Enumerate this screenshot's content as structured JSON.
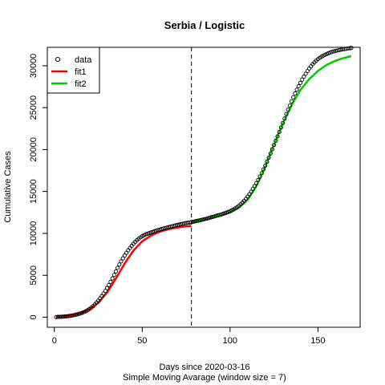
{
  "chart_data": {
    "type": "scatter",
    "title": "Serbia / Logistic",
    "xlabel": "Days since 2020-03-16",
    "xlabel_sub": "Simple Moving Avarage (window size = 7)",
    "ylabel": "Cumulative Cases",
    "xlim": [
      -4,
      174
    ],
    "ylim": [
      -1200,
      32200
    ],
    "x_ticks": [
      0,
      50,
      100,
      150
    ],
    "y_ticks": [
      0,
      5000,
      10000,
      15000,
      20000,
      25000,
      30000
    ],
    "vline_x": 78,
    "legend_position": "top-left",
    "legend": [
      {
        "label": "data",
        "kind": "circle"
      },
      {
        "label": "fit1",
        "kind": "line",
        "color": "#ff0000"
      },
      {
        "label": "fit2",
        "kind": "line",
        "color": "#00cd00"
      }
    ],
    "series": [
      {
        "name": "data",
        "x": [
          1,
          2,
          3,
          4,
          5,
          6,
          7,
          8,
          9,
          10,
          11,
          12,
          13,
          14,
          15,
          16,
          17,
          18,
          19,
          20,
          21,
          22,
          23,
          24,
          25,
          26,
          27,
          28,
          29,
          30,
          31,
          32,
          33,
          34,
          35,
          36,
          37,
          38,
          39,
          40,
          41,
          42,
          43,
          44,
          45,
          46,
          47,
          48,
          49,
          50,
          51,
          52,
          53,
          54,
          55,
          56,
          57,
          58,
          59,
          60,
          61,
          62,
          63,
          64,
          65,
          66,
          67,
          68,
          69,
          70,
          71,
          72,
          73,
          74,
          75,
          76,
          77,
          78,
          79,
          80,
          81,
          82,
          83,
          84,
          85,
          86,
          87,
          88,
          89,
          90,
          91,
          92,
          93,
          94,
          95,
          96,
          97,
          98,
          99,
          100,
          101,
          102,
          103,
          104,
          105,
          106,
          107,
          108,
          109,
          110,
          111,
          112,
          113,
          114,
          115,
          116,
          117,
          118,
          119,
          120,
          121,
          122,
          123,
          124,
          125,
          126,
          127,
          128,
          129,
          130,
          131,
          132,
          133,
          134,
          135,
          136,
          137,
          138,
          139,
          140,
          141,
          142,
          143,
          144,
          145,
          146,
          147,
          148,
          149,
          150,
          151,
          152,
          153,
          154,
          155,
          156,
          157,
          158,
          159,
          160,
          161,
          162,
          163,
          164,
          165,
          166,
          167,
          168,
          169
        ],
        "y": [
          20,
          30,
          40,
          50,
          65,
          80,
          100,
          130,
          160,
          200,
          240,
          290,
          340,
          400,
          460,
          530,
          620,
          720,
          840,
          980,
          1140,
          1320,
          1520,
          1740,
          1980,
          2240,
          2520,
          2820,
          3140,
          3480,
          3840,
          4220,
          4620,
          5040,
          5460,
          5880,
          6280,
          6660,
          7020,
          7360,
          7680,
          7980,
          8260,
          8520,
          8760,
          8980,
          9180,
          9360,
          9520,
          9660,
          9780,
          9880,
          9960,
          10040,
          10110,
          10180,
          10250,
          10320,
          10390,
          10450,
          10510,
          10570,
          10630,
          10690,
          10740,
          10790,
          10840,
          10890,
          10940,
          10990,
          11040,
          11090,
          11140,
          11190,
          11230,
          11270,
          11310,
          11350,
          11390,
          11430,
          11470,
          11520,
          11570,
          11620,
          11670,
          11720,
          11780,
          11840,
          11900,
          11960,
          12020,
          12080,
          12140,
          12200,
          12260,
          12330,
          12400,
          12480,
          12560,
          12650,
          12750,
          12860,
          12990,
          13130,
          13290,
          13470,
          13670,
          13890,
          14130,
          14390,
          14670,
          14970,
          15290,
          15630,
          15990,
          16370,
          16770,
          17190,
          17630,
          18090,
          18560,
          19040,
          19530,
          20030,
          20540,
          21060,
          21580,
          22110,
          22640,
          23170,
          23700,
          24230,
          24750,
          25260,
          25760,
          26240,
          26700,
          27140,
          27560,
          27960,
          28340,
          28700,
          29040,
          29360,
          29660,
          29930,
          30180,
          30400,
          30600,
          30780,
          30940,
          31080,
          31200,
          31310,
          31410,
          31500,
          31580,
          31650,
          31710,
          31770,
          31820,
          31870,
          31910,
          31950,
          31990,
          32030,
          32060,
          32090,
          32120
        ]
      },
      {
        "name": "fit1",
        "color": "#ff0000",
        "x": [
          1,
          5,
          10,
          15,
          20,
          25,
          30,
          35,
          40,
          45,
          50,
          55,
          60,
          65,
          70,
          75,
          78
        ],
        "y": [
          40,
          100,
          240,
          490,
          940,
          1700,
          2950,
          4600,
          6400,
          7950,
          9050,
          9750,
          10200,
          10500,
          10700,
          10850,
          10900
        ]
      },
      {
        "name": "fit2",
        "color": "#00cd00",
        "x": [
          78,
          85,
          90,
          95,
          100,
          105,
          110,
          115,
          120,
          125,
          130,
          135,
          140,
          145,
          150,
          155,
          160,
          165,
          169
        ],
        "y": [
          11350,
          11650,
          11900,
          12150,
          12500,
          13050,
          14000,
          15650,
          17950,
          20550,
          23100,
          25300,
          27100,
          28400,
          29400,
          30100,
          30600,
          30950,
          31150
        ]
      }
    ]
  }
}
